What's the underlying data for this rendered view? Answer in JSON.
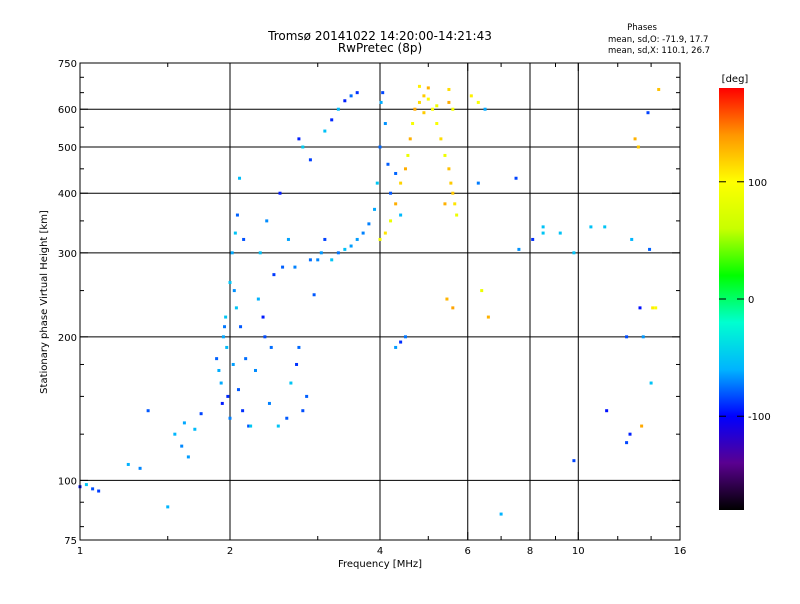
{
  "chart_data": {
    "type": "scatter",
    "title": "Tromsø 20141022 14:20:00-14:21:43",
    "subtitle": "RwPretec (8p)",
    "phases": {
      "title": "Phases",
      "line1": "mean, sd,O: -71.9, 17.7",
      "line2": "mean, sd,X: 110.1, 26.7"
    },
    "xlabel": "Frequency [MHz]",
    "ylabel": "Stationary phase Virtual Height [km]",
    "x_scale": "log",
    "y_scale": "log",
    "xlim": [
      1,
      16
    ],
    "ylim": [
      75,
      750
    ],
    "x_ticks": [
      1,
      2,
      4,
      6,
      8,
      10,
      16
    ],
    "x_tick_labels": [
      "1",
      "2",
      "4",
      "6",
      "8",
      "10",
      "16"
    ],
    "x_minor_ticks": [
      1.5,
      3,
      5,
      7,
      9,
      12,
      14
    ],
    "y_ticks": [
      75,
      100,
      200,
      300,
      400,
      500,
      600,
      750
    ],
    "y_tick_labels": [
      "75",
      "100",
      "200",
      "300",
      "400",
      "500",
      "600",
      "750"
    ],
    "y_minor_ticks": [
      80,
      90,
      125,
      150,
      175,
      250,
      350,
      450,
      550,
      650,
      700
    ],
    "grid": true,
    "colorbar": {
      "label": "[deg]",
      "range": [
        -180,
        180
      ],
      "ticks": [
        100,
        0,
        -100
      ],
      "tick_labels": [
        "100",
        "0",
        "-100"
      ],
      "colors": [
        "#000000",
        "#5a0090",
        "#0000ff",
        "#00b4ff",
        "#00ffd0",
        "#00ff00",
        "#c8ff00",
        "#ffff00",
        "#ff9600",
        "#ff0000"
      ]
    },
    "series": [
      {
        "role": "O-mode trace",
        "mean_phase": -71.9,
        "points": [
          [
            1.0,
            97
          ],
          [
            1.03,
            98
          ],
          [
            1.06,
            96
          ],
          [
            1.09,
            95
          ],
          [
            1.25,
            108
          ],
          [
            1.32,
            106
          ],
          [
            1.37,
            140
          ],
          [
            1.5,
            88
          ],
          [
            1.55,
            125
          ],
          [
            1.6,
            118
          ],
          [
            1.62,
            132
          ],
          [
            1.65,
            112
          ],
          [
            1.7,
            128
          ],
          [
            1.75,
            138
          ],
          [
            1.88,
            180
          ],
          [
            1.9,
            170
          ],
          [
            1.92,
            160
          ],
          [
            1.93,
            145
          ],
          [
            1.94,
            200
          ],
          [
            1.95,
            210
          ],
          [
            1.96,
            220
          ],
          [
            1.97,
            190
          ],
          [
            1.98,
            150
          ],
          [
            2.0,
            135
          ],
          [
            2.0,
            260
          ],
          [
            2.02,
            300
          ],
          [
            2.03,
            175
          ],
          [
            2.04,
            250
          ],
          [
            2.05,
            330
          ],
          [
            2.06,
            230
          ],
          [
            2.07,
            360
          ],
          [
            2.08,
            155
          ],
          [
            2.09,
            430
          ],
          [
            2.1,
            210
          ],
          [
            2.12,
            140
          ],
          [
            2.13,
            320
          ],
          [
            2.15,
            180
          ],
          [
            2.18,
            130
          ],
          [
            2.2,
            130
          ],
          [
            2.25,
            170
          ],
          [
            2.28,
            240
          ],
          [
            2.3,
            300
          ],
          [
            2.33,
            220
          ],
          [
            2.35,
            200
          ],
          [
            2.37,
            350
          ],
          [
            2.4,
            145
          ],
          [
            2.42,
            190
          ],
          [
            2.45,
            270
          ],
          [
            2.5,
            130
          ],
          [
            2.52,
            400
          ],
          [
            2.55,
            280
          ],
          [
            2.6,
            135
          ],
          [
            2.62,
            320
          ],
          [
            2.65,
            160
          ],
          [
            2.7,
            280
          ],
          [
            2.72,
            175
          ],
          [
            2.75,
            190
          ],
          [
            2.8,
            140
          ],
          [
            2.85,
            150
          ],
          [
            2.9,
            290
          ],
          [
            2.95,
            245
          ],
          [
            3.0,
            290
          ],
          [
            3.05,
            300
          ],
          [
            3.1,
            320
          ],
          [
            3.2,
            290
          ],
          [
            3.3,
            300
          ],
          [
            3.4,
            305
          ],
          [
            3.5,
            310
          ],
          [
            3.6,
            320
          ],
          [
            3.7,
            330
          ],
          [
            3.8,
            345
          ],
          [
            3.9,
            370
          ],
          [
            3.95,
            420
          ],
          [
            4.0,
            500
          ],
          [
            4.02,
            620
          ],
          [
            4.05,
            650
          ],
          [
            4.1,
            560
          ],
          [
            4.15,
            460
          ],
          [
            4.2,
            400
          ],
          [
            4.3,
            440
          ],
          [
            4.4,
            360
          ],
          [
            3.1,
            540
          ],
          [
            3.2,
            570
          ],
          [
            3.3,
            600
          ],
          [
            3.4,
            625
          ],
          [
            3.5,
            640
          ],
          [
            3.6,
            650
          ],
          [
            2.75,
            520
          ],
          [
            2.8,
            500
          ],
          [
            2.9,
            470
          ],
          [
            4.3,
            190
          ],
          [
            4.4,
            195
          ],
          [
            4.5,
            200
          ],
          [
            7.6,
            305
          ],
          [
            8.1,
            320
          ],
          [
            8.5,
            330
          ],
          [
            9.2,
            330
          ],
          [
            9.8,
            300
          ],
          [
            10.6,
            340
          ],
          [
            11.3,
            340
          ],
          [
            12.8,
            320
          ],
          [
            12.5,
            200
          ],
          [
            11.4,
            140
          ],
          [
            12.5,
            120
          ],
          [
            12.7,
            125
          ],
          [
            13.3,
            230
          ],
          [
            13.5,
            200
          ],
          [
            13.8,
            590
          ],
          [
            7.0,
            85
          ],
          [
            6.3,
            420
          ],
          [
            6.5,
            600
          ],
          [
            7.5,
            430
          ],
          [
            8.5,
            340
          ],
          [
            9.8,
            110
          ],
          [
            13.9,
            305
          ],
          [
            14.0,
            160
          ]
        ]
      },
      {
        "role": "X-mode trace",
        "mean_phase": 110.1,
        "points": [
          [
            4.0,
            320
          ],
          [
            4.1,
            330
          ],
          [
            4.2,
            350
          ],
          [
            4.3,
            380
          ],
          [
            4.4,
            420
          ],
          [
            4.5,
            450
          ],
          [
            4.55,
            480
          ],
          [
            4.6,
            520
          ],
          [
            4.65,
            560
          ],
          [
            4.7,
            600
          ],
          [
            4.8,
            620
          ],
          [
            4.9,
            640
          ],
          [
            5.0,
            630
          ],
          [
            5.1,
            600
          ],
          [
            5.2,
            560
          ],
          [
            5.3,
            520
          ],
          [
            5.4,
            480
          ],
          [
            5.5,
            450
          ],
          [
            5.55,
            420
          ],
          [
            5.6,
            400
          ],
          [
            5.65,
            380
          ],
          [
            5.7,
            360
          ],
          [
            5.2,
            610
          ],
          [
            5.5,
            620
          ],
          [
            5.6,
            600
          ],
          [
            4.9,
            590
          ],
          [
            5.4,
            380
          ],
          [
            6.4,
            250
          ],
          [
            6.6,
            220
          ],
          [
            5.45,
            240
          ],
          [
            5.6,
            230
          ],
          [
            13.4,
            130
          ],
          [
            14.5,
            660
          ],
          [
            14.1,
            230
          ],
          [
            14.3,
            230
          ],
          [
            13.2,
            500
          ],
          [
            13.0,
            520
          ],
          [
            6.1,
            640
          ],
          [
            6.3,
            620
          ],
          [
            4.8,
            670
          ],
          [
            5.0,
            665
          ],
          [
            5.5,
            660
          ]
        ]
      }
    ]
  }
}
